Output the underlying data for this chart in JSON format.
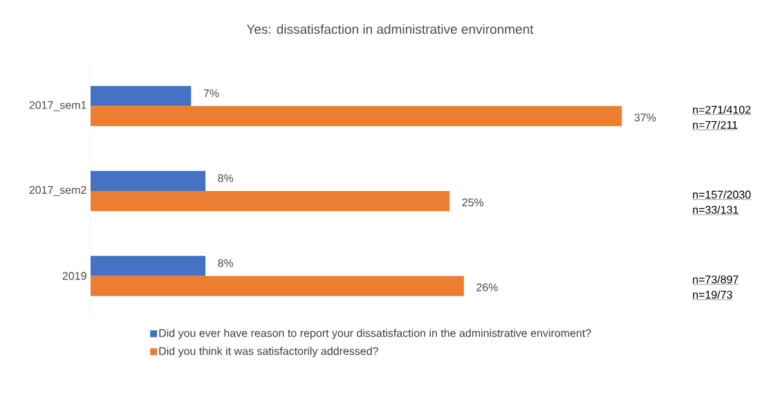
{
  "chart_data": {
    "type": "bar",
    "orientation": "horizontal",
    "title": "Yes: dissatisfaction in administrative environment",
    "categories": [
      "2017_sem1",
      "2017_sem2",
      "2019"
    ],
    "series": [
      {
        "name": "Did you ever have reason to report your dissatisfaction in the administrative enviroment?",
        "color": "#4472c4",
        "values": [
          7,
          8,
          8
        ],
        "value_labels": [
          "7%",
          "8%",
          "8%"
        ]
      },
      {
        "name": "Did you think it was satisfactorily addressed?",
        "color": "#ed7d31",
        "values": [
          37,
          25,
          26
        ],
        "value_labels": [
          "37%",
          "25%",
          "26%"
        ]
      }
    ],
    "data_labels": true,
    "legend": "bottom",
    "annotations": [
      "n=271/4102",
      "n=77/211",
      "n=157/2030",
      "n=33/131",
      "n=73/897",
      "n=19/73"
    ]
  }
}
